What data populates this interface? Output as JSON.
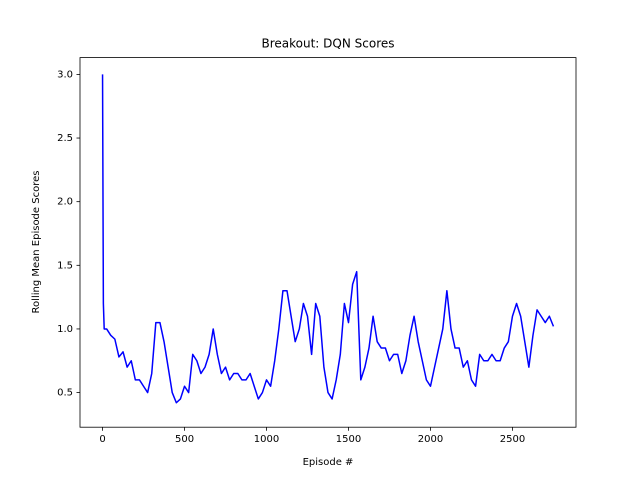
{
  "chart_data": {
    "type": "line",
    "title": "Breakout: DQN Scores",
    "x_label": "Episode #",
    "y_label": "Rolling Mean Episode Scores",
    "x": [
      0,
      5,
      10,
      25,
      50,
      75,
      100,
      125,
      150,
      175,
      200,
      225,
      250,
      275,
      300,
      325,
      350,
      375,
      400,
      425,
      450,
      475,
      500,
      525,
      550,
      575,
      600,
      625,
      650,
      675,
      700,
      725,
      750,
      775,
      800,
      825,
      850,
      875,
      900,
      925,
      950,
      975,
      1000,
      1025,
      1050,
      1075,
      1100,
      1125,
      1150,
      1175,
      1200,
      1225,
      1250,
      1275,
      1300,
      1325,
      1350,
      1375,
      1400,
      1425,
      1450,
      1475,
      1500,
      1525,
      1550,
      1575,
      1600,
      1625,
      1650,
      1675,
      1700,
      1725,
      1750,
      1775,
      1800,
      1825,
      1850,
      1875,
      1900,
      1925,
      1950,
      1975,
      2000,
      2025,
      2050,
      2075,
      2100,
      2125,
      2150,
      2175,
      2200,
      2225,
      2250,
      2275,
      2300,
      2325,
      2350,
      2375,
      2400,
      2425,
      2450,
      2475,
      2500,
      2525,
      2550,
      2575,
      2600,
      2625,
      2650,
      2675,
      2700,
      2725,
      2750
    ],
    "series": [
      {
        "name": "Rolling Mean Episode Scores",
        "color": "#0000ff",
        "values": [
          3.0,
          1.2,
          1.0,
          1.0,
          0.95,
          0.92,
          0.78,
          0.82,
          0.7,
          0.75,
          0.6,
          0.6,
          0.55,
          0.5,
          0.65,
          1.05,
          1.05,
          0.9,
          0.7,
          0.5,
          0.42,
          0.45,
          0.55,
          0.5,
          0.8,
          0.75,
          0.65,
          0.7,
          0.8,
          1.0,
          0.8,
          0.65,
          0.7,
          0.6,
          0.65,
          0.65,
          0.6,
          0.6,
          0.65,
          0.55,
          0.45,
          0.5,
          0.6,
          0.55,
          0.75,
          1.0,
          1.3,
          1.3,
          1.1,
          0.9,
          1.0,
          1.2,
          1.1,
          0.8,
          1.2,
          1.1,
          0.7,
          0.5,
          0.45,
          0.6,
          0.8,
          1.2,
          1.05,
          1.35,
          1.45,
          0.6,
          0.7,
          0.85,
          1.1,
          0.9,
          0.85,
          0.85,
          0.75,
          0.8,
          0.8,
          0.65,
          0.75,
          0.95,
          1.1,
          0.9,
          0.75,
          0.6,
          0.55,
          0.7,
          0.85,
          1.0,
          1.3,
          1.0,
          0.85,
          0.85,
          0.7,
          0.75,
          0.6,
          0.55,
          0.8,
          0.75,
          0.75,
          0.8,
          0.75,
          0.75,
          0.85,
          0.9,
          1.1,
          1.2,
          1.1,
          0.9,
          0.7,
          0.95,
          1.15,
          1.1,
          1.05,
          1.1,
          1.02
        ]
      }
    ],
    "xlim": [
      -137.5,
      2887.5
    ],
    "ylim": [
      0.228,
      3.132
    ],
    "xticks": [
      0,
      500,
      1000,
      1500,
      2000,
      2500
    ],
    "yticks": [
      0.5,
      {
        "value": 1,
        "label": "1.0"
      },
      1.5,
      {
        "value": 2,
        "label": "2.0"
      },
      2.5,
      {
        "value": 3,
        "label": "3.0"
      }
    ]
  }
}
